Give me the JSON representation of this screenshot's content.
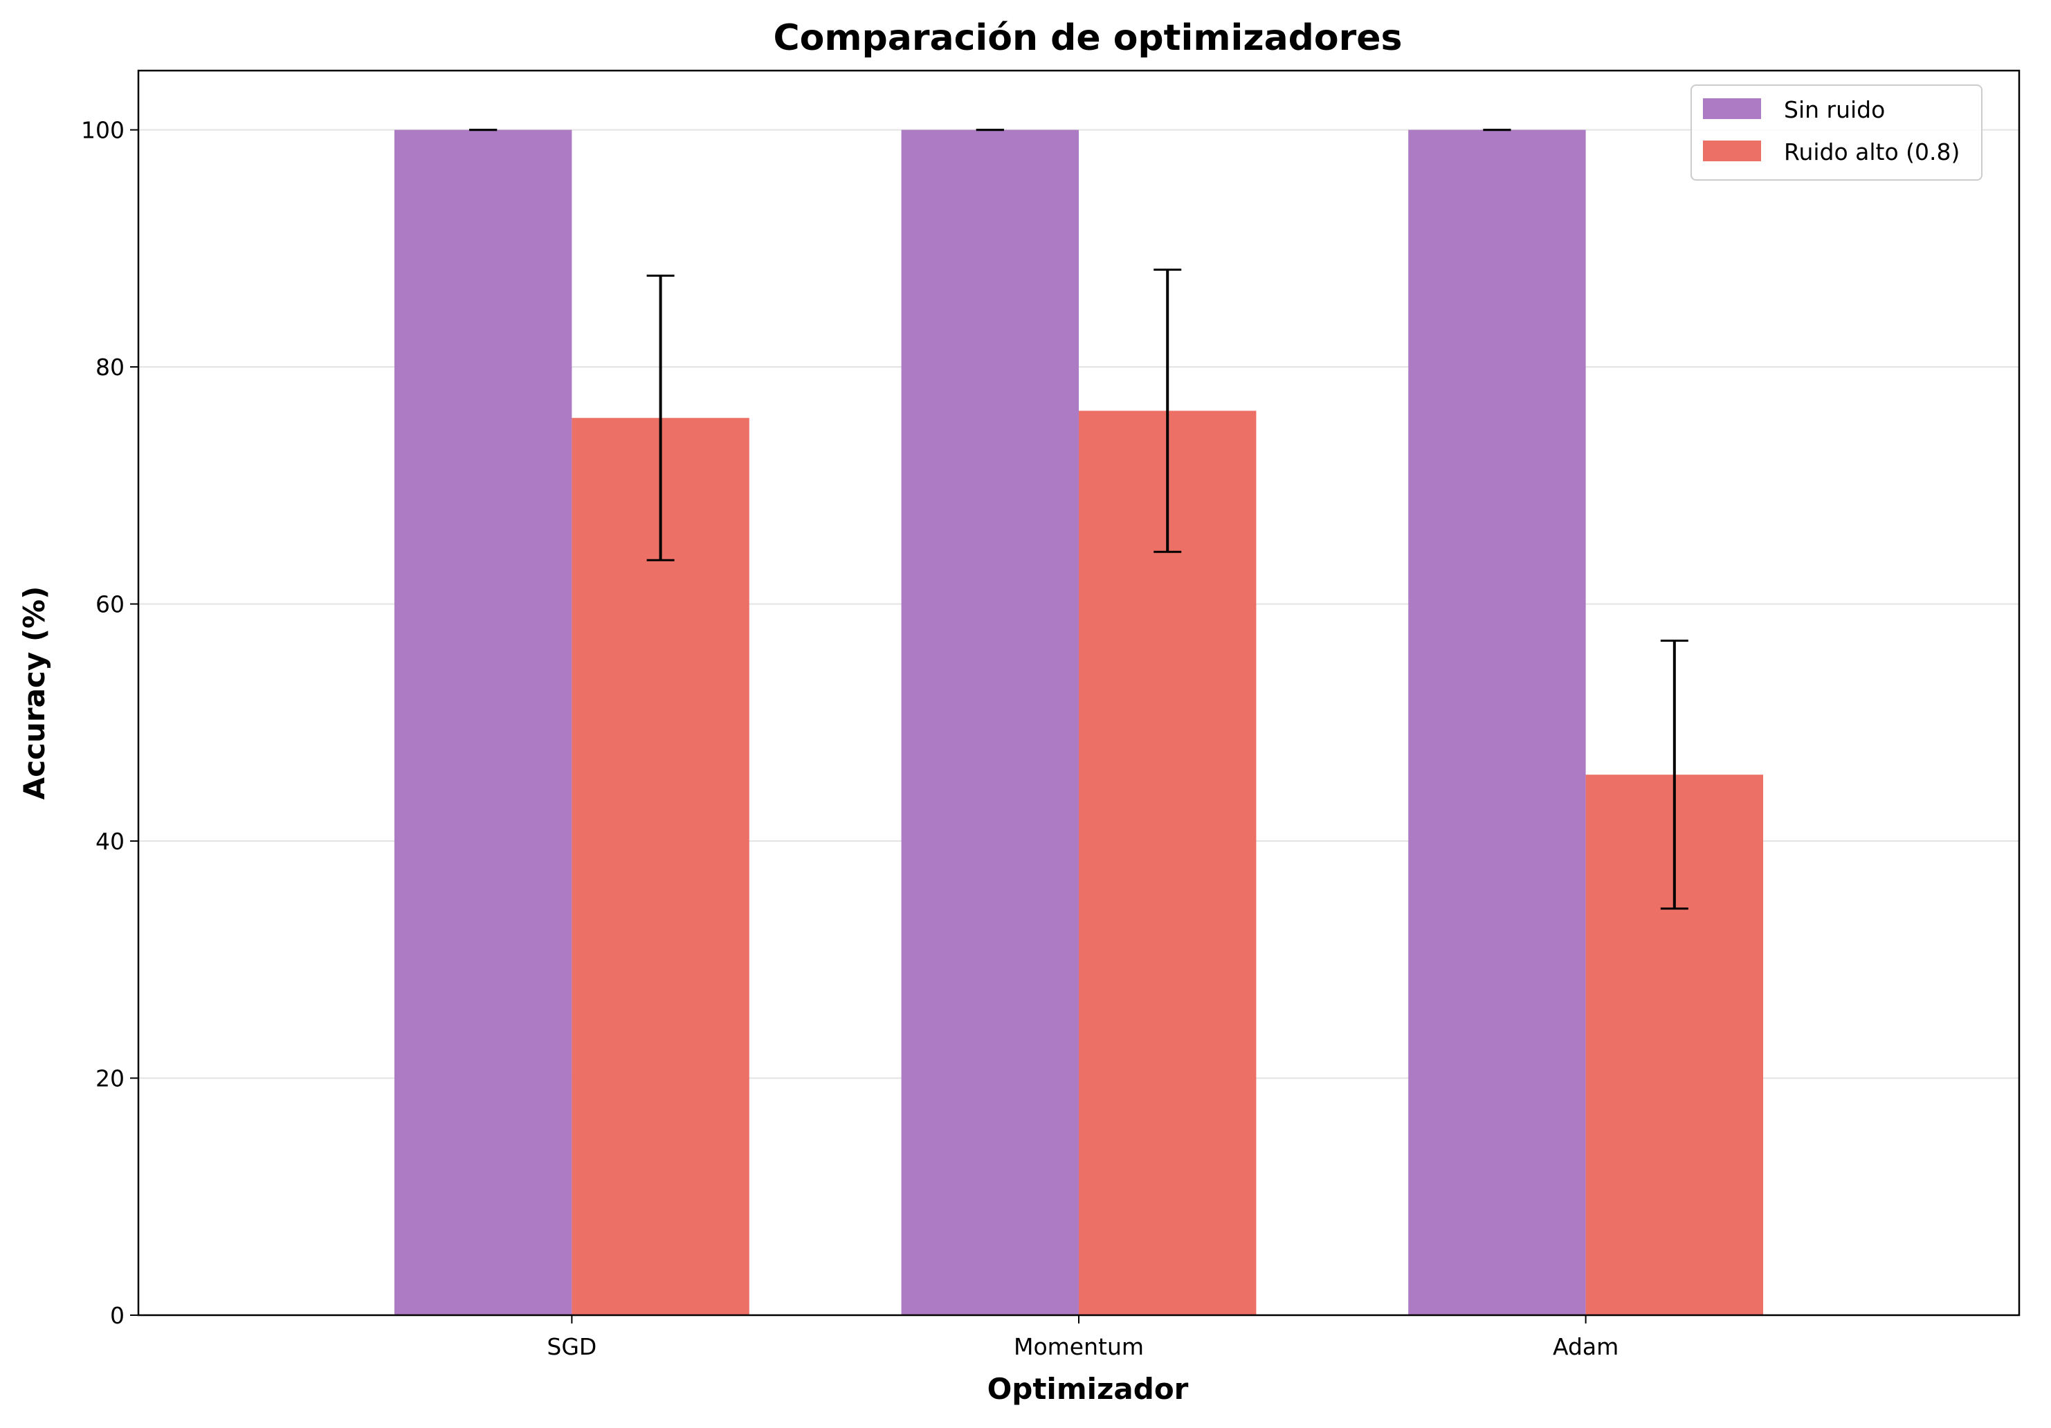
{
  "chart_data": {
    "type": "bar",
    "title": "Comparación de optimizadores",
    "xlabel": "Optimizador",
    "ylabel": "Accuracy (%)",
    "categories": [
      "SGD",
      "Momentum",
      "Adam"
    ],
    "series": [
      {
        "name": "Sin ruido",
        "values": [
          100.0,
          100.0,
          100.0
        ],
        "errors": [
          0.0,
          0.0,
          0.0
        ],
        "color": "#ad7bc3"
      },
      {
        "name": "Ruido alto (0.8)",
        "values": [
          75.7,
          76.3,
          45.6
        ],
        "errors": [
          12.0,
          11.9,
          11.3
        ],
        "color": "#ec7065"
      }
    ],
    "ylim": [
      0,
      105
    ],
    "yticks": [
      0,
      20,
      40,
      60,
      80,
      100
    ],
    "grid": "horizontal",
    "legend_position": "top-right"
  }
}
